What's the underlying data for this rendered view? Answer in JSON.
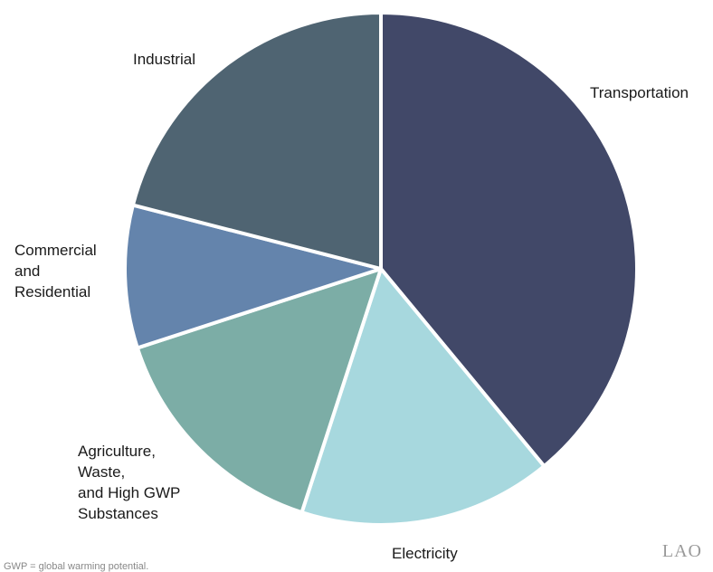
{
  "chart_data": {
    "type": "pie",
    "slices": [
      {
        "label": "Transportation",
        "label_lines": [
          "Transportation"
        ],
        "value": 39,
        "color": "#414868"
      },
      {
        "label": "Electricity",
        "label_lines": [
          "Electricity"
        ],
        "value": 16,
        "color": "#a7d8de"
      },
      {
        "label": "Agriculture, Waste, and High GWP Substances",
        "label_lines": [
          "Agriculture,",
          "Waste,",
          "and High GWP",
          "Substances"
        ],
        "value": 15,
        "color": "#7cada6"
      },
      {
        "label": "Commercial and Residential",
        "label_lines": [
          "Commercial",
          "and",
          "Residential"
        ],
        "value": 9,
        "color": "#6484ac"
      },
      {
        "label": "Industrial",
        "label_lines": [
          "Industrial"
        ],
        "value": 21,
        "color": "#4f6472"
      }
    ]
  },
  "footnote": "GWP = global warming potential.",
  "logo": "LAO"
}
